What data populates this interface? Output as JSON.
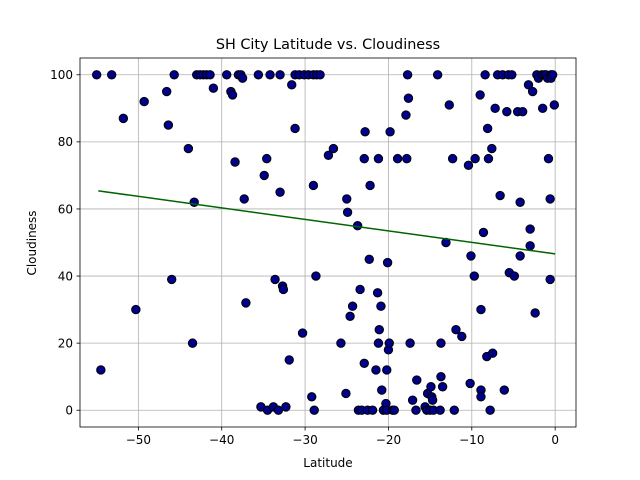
{
  "chart_data": {
    "type": "scatter",
    "title": "SH City Latitude vs. Cloudiness",
    "xlabel": "Latitude",
    "ylabel": "Cloudiness",
    "xlim": [
      -57,
      2.5
    ],
    "ylim": [
      -5,
      105
    ],
    "xticks": [
      -50,
      -40,
      -30,
      -20,
      -10,
      0
    ],
    "xtick_labels": [
      "−50",
      "−40",
      "−30",
      "−20",
      "−10",
      "0"
    ],
    "yticks": [
      0,
      20,
      40,
      60,
      80,
      100
    ],
    "ytick_labels": [
      "0",
      "20",
      "40",
      "60",
      "80",
      "100"
    ],
    "grid": true,
    "marker_color": "#00008b",
    "marker_edge_color": "#000000",
    "regression_line": {
      "x": [
        -54.8,
        0
      ],
      "y": [
        65.4,
        46.6
      ],
      "color": "#006400"
    },
    "points": [
      [
        -55.0,
        100
      ],
      [
        -54.5,
        12
      ],
      [
        -53.2,
        100
      ],
      [
        -51.8,
        87
      ],
      [
        -50.3,
        30
      ],
      [
        -49.3,
        92
      ],
      [
        -46.6,
        95
      ],
      [
        -46.4,
        85
      ],
      [
        -46.0,
        39
      ],
      [
        -45.7,
        100
      ],
      [
        -44.0,
        78
      ],
      [
        -43.3,
        62
      ],
      [
        -43.5,
        20
      ],
      [
        -43.0,
        100
      ],
      [
        -42.6,
        100
      ],
      [
        -42.2,
        100
      ],
      [
        -41.8,
        100
      ],
      [
        -41.4,
        100
      ],
      [
        -41.0,
        96
      ],
      [
        -39.4,
        100
      ],
      [
        -38.9,
        95
      ],
      [
        -38.7,
        94
      ],
      [
        -38.4,
        74
      ],
      [
        -38.0,
        100
      ],
      [
        -37.7,
        100
      ],
      [
        -37.5,
        99
      ],
      [
        -37.3,
        63
      ],
      [
        -37.1,
        32
      ],
      [
        -35.6,
        100
      ],
      [
        -35.3,
        1
      ],
      [
        -34.9,
        70
      ],
      [
        -34.6,
        75
      ],
      [
        -34.5,
        0
      ],
      [
        -34.2,
        100
      ],
      [
        -33.8,
        1
      ],
      [
        -33.6,
        39
      ],
      [
        -33.2,
        0
      ],
      [
        -33.0,
        65
      ],
      [
        -33.0,
        100
      ],
      [
        -32.7,
        37
      ],
      [
        -32.6,
        36
      ],
      [
        -32.3,
        1
      ],
      [
        -31.9,
        15
      ],
      [
        -31.6,
        97
      ],
      [
        -31.2,
        84
      ],
      [
        -31.2,
        100
      ],
      [
        -30.7,
        100
      ],
      [
        -30.3,
        23
      ],
      [
        -30.1,
        100
      ],
      [
        -29.6,
        100
      ],
      [
        -29.2,
        4
      ],
      [
        -29.0,
        100
      ],
      [
        -29.0,
        67
      ],
      [
        -28.9,
        0
      ],
      [
        -28.7,
        40
      ],
      [
        -28.6,
        100
      ],
      [
        -28.2,
        100
      ],
      [
        -27.2,
        76
      ],
      [
        -26.6,
        78
      ],
      [
        -25.7,
        20
      ],
      [
        -25.1,
        5
      ],
      [
        -25.0,
        63
      ],
      [
        -24.9,
        59
      ],
      [
        -24.6,
        28
      ],
      [
        -24.3,
        31
      ],
      [
        -23.7,
        55
      ],
      [
        -23.6,
        0
      ],
      [
        -23.4,
        36
      ],
      [
        -23.2,
        0
      ],
      [
        -22.9,
        14
      ],
      [
        -22.9,
        75
      ],
      [
        -22.8,
        83
      ],
      [
        -22.5,
        0
      ],
      [
        -22.3,
        45
      ],
      [
        -22.2,
        67
      ],
      [
        -21.9,
        0
      ],
      [
        -21.5,
        12
      ],
      [
        -21.3,
        35
      ],
      [
        -21.2,
        75
      ],
      [
        -21.2,
        20
      ],
      [
        -21.1,
        24
      ],
      [
        -20.9,
        31
      ],
      [
        -20.8,
        6
      ],
      [
        -20.6,
        0
      ],
      [
        -20.3,
        2
      ],
      [
        -20.2,
        0
      ],
      [
        -20.2,
        12
      ],
      [
        -20.1,
        44
      ],
      [
        -20.0,
        18
      ],
      [
        -19.9,
        20
      ],
      [
        -19.8,
        83
      ],
      [
        -19.5,
        0
      ],
      [
        -19.3,
        0
      ],
      [
        -18.9,
        75
      ],
      [
        -17.9,
        88
      ],
      [
        -17.8,
        75
      ],
      [
        -17.7,
        100
      ],
      [
        -17.6,
        93
      ],
      [
        -17.4,
        20
      ],
      [
        -17.1,
        3
      ],
      [
        -16.7,
        0
      ],
      [
        -16.6,
        9
      ],
      [
        -15.6,
        1
      ],
      [
        -15.4,
        0
      ],
      [
        -15.3,
        5
      ],
      [
        -15.0,
        0
      ],
      [
        -14.9,
        7
      ],
      [
        -14.8,
        4
      ],
      [
        -14.7,
        3
      ],
      [
        -14.6,
        0
      ],
      [
        -14.1,
        100
      ],
      [
        -13.8,
        0
      ],
      [
        -13.7,
        10
      ],
      [
        -13.7,
        20
      ],
      [
        -13.5,
        7
      ],
      [
        -13.1,
        50
      ],
      [
        -12.7,
        91
      ],
      [
        -12.3,
        75
      ],
      [
        -12.1,
        0
      ],
      [
        -11.9,
        24
      ],
      [
        -11.2,
        22
      ],
      [
        -10.4,
        73
      ],
      [
        -10.2,
        8
      ],
      [
        -10.1,
        46
      ],
      [
        -9.7,
        40
      ],
      [
        -9.6,
        75
      ],
      [
        -9.0,
        94
      ],
      [
        -8.9,
        6
      ],
      [
        -8.9,
        4
      ],
      [
        -8.9,
        30
      ],
      [
        -8.6,
        53
      ],
      [
        -8.4,
        100
      ],
      [
        -8.2,
        16
      ],
      [
        -8.1,
        84
      ],
      [
        -8.0,
        75
      ],
      [
        -7.8,
        0
      ],
      [
        -7.6,
        78
      ],
      [
        -7.5,
        17
      ],
      [
        -7.2,
        90
      ],
      [
        -6.9,
        100
      ],
      [
        -6.6,
        64
      ],
      [
        -6.3,
        100
      ],
      [
        -6.1,
        6
      ],
      [
        -5.8,
        89
      ],
      [
        -5.6,
        100
      ],
      [
        -5.5,
        41
      ],
      [
        -5.2,
        100
      ],
      [
        -4.9,
        40
      ],
      [
        -4.5,
        89
      ],
      [
        -4.2,
        62
      ],
      [
        -4.2,
        46
      ],
      [
        -3.9,
        89
      ],
      [
        -3.2,
        97
      ],
      [
        -3.0,
        54
      ],
      [
        -3.0,
        49
      ],
      [
        -2.7,
        95
      ],
      [
        -2.4,
        29
      ],
      [
        -2.2,
        100
      ],
      [
        -2.0,
        99
      ],
      [
        -1.6,
        100
      ],
      [
        -1.5,
        90
      ],
      [
        -1.3,
        100
      ],
      [
        -1.1,
        100
      ],
      [
        -0.9,
        99
      ],
      [
        -0.8,
        75
      ],
      [
        -0.6,
        63
      ],
      [
        -0.6,
        39
      ],
      [
        -0.5,
        100
      ],
      [
        -0.5,
        99
      ],
      [
        -0.3,
        100
      ],
      [
        -0.1,
        91
      ]
    ]
  }
}
